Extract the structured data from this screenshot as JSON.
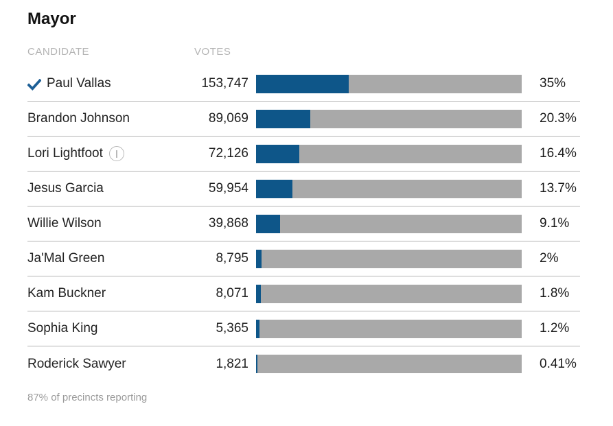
{
  "title": "Mayor",
  "columns": {
    "candidate": "CANDIDATE",
    "votes": "VOTES"
  },
  "footer": "87% of precincts reporting",
  "colors": {
    "bar_fill": "#0e5689",
    "bar_bg": "#a9a9a9",
    "check": "#1d5f96",
    "separator": "#b3b3b3"
  },
  "candidates": [
    {
      "name": "Paul Vallas",
      "votes": "153,747",
      "pct": "35%",
      "pct_value": 35,
      "winner": true,
      "incumbent": false
    },
    {
      "name": "Brandon Johnson",
      "votes": "89,069",
      "pct": "20.3%",
      "pct_value": 20.3,
      "winner": false,
      "incumbent": false
    },
    {
      "name": "Lori Lightfoot",
      "votes": "72,126",
      "pct": "16.4%",
      "pct_value": 16.4,
      "winner": false,
      "incumbent": true
    },
    {
      "name": "Jesus Garcia",
      "votes": "59,954",
      "pct": "13.7%",
      "pct_value": 13.7,
      "winner": false,
      "incumbent": false
    },
    {
      "name": "Willie Wilson",
      "votes": "39,868",
      "pct": "9.1%",
      "pct_value": 9.1,
      "winner": false,
      "incumbent": false
    },
    {
      "name": "Ja'Mal Green",
      "votes": "8,795",
      "pct": "2%",
      "pct_value": 2,
      "winner": false,
      "incumbent": false
    },
    {
      "name": "Kam Buckner",
      "votes": "8,071",
      "pct": "1.8%",
      "pct_value": 1.8,
      "winner": false,
      "incumbent": false
    },
    {
      "name": "Sophia King",
      "votes": "5,365",
      "pct": "1.2%",
      "pct_value": 1.2,
      "winner": false,
      "incumbent": false
    },
    {
      "name": "Roderick Sawyer",
      "votes": "1,821",
      "pct": "0.41%",
      "pct_value": 0.41,
      "winner": false,
      "incumbent": false
    }
  ],
  "chart_data": {
    "type": "bar",
    "orientation": "horizontal",
    "title": "Mayor",
    "categories": [
      "Paul Vallas",
      "Brandon Johnson",
      "Lori Lightfoot",
      "Jesus Garcia",
      "Willie Wilson",
      "Ja'Mal Green",
      "Kam Buckner",
      "Sophia King",
      "Roderick Sawyer"
    ],
    "series": [
      {
        "name": "Votes",
        "values": [
          153747,
          89069,
          72126,
          59954,
          39868,
          8795,
          8071,
          5365,
          1821
        ]
      },
      {
        "name": "Percent",
        "values": [
          35,
          20.3,
          16.4,
          13.7,
          9.1,
          2,
          1.8,
          1.2,
          0.41
        ]
      }
    ],
    "xlabel": "",
    "ylabel": "",
    "xlim": [
      0,
      100
    ],
    "grid": false,
    "legend": false,
    "annotations": [
      "87% of precincts reporting"
    ]
  }
}
